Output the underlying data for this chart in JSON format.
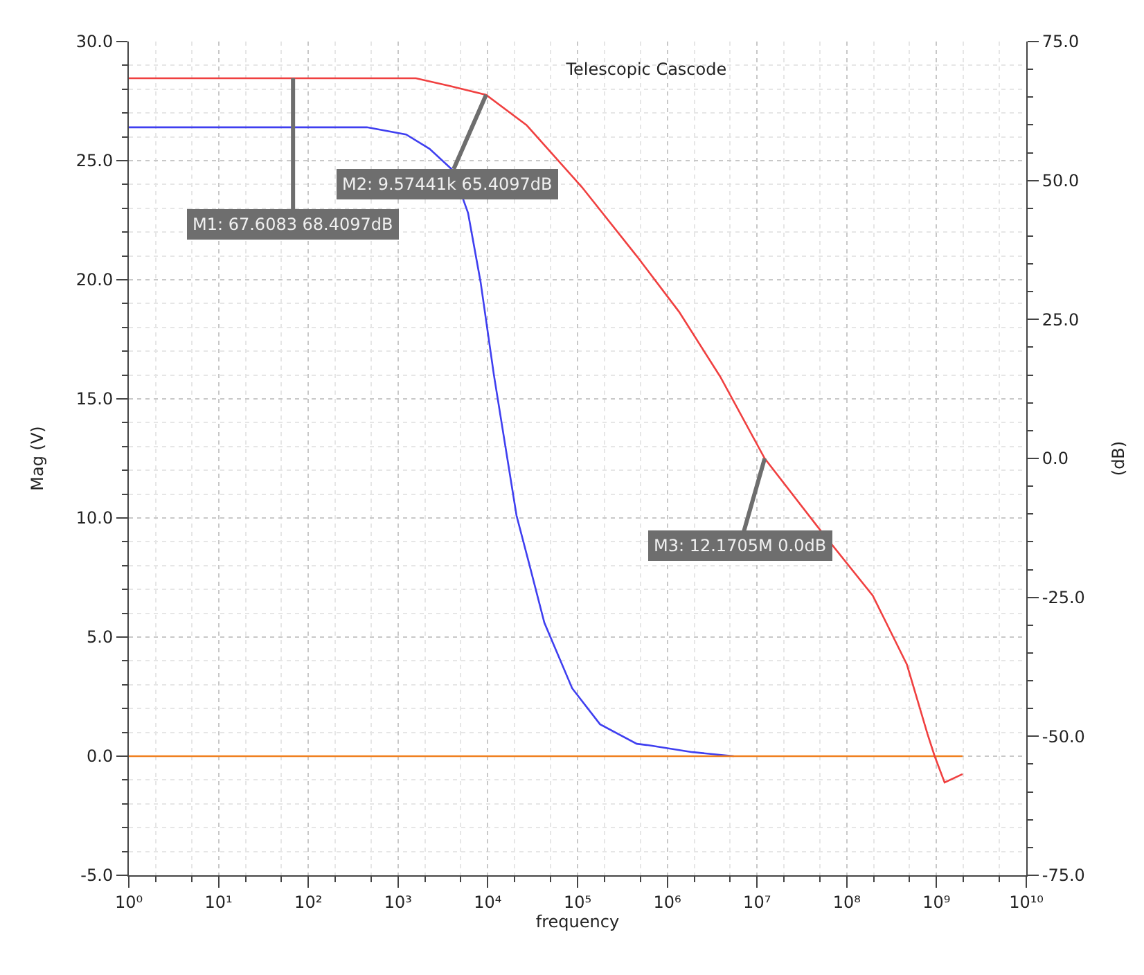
{
  "chart_data": {
    "type": "line",
    "title": "Telescopic Cascode",
    "xlabel": "frequency",
    "ylabel": "Mag (V)",
    "y2label": "(dB)",
    "log": "x",
    "grid": true,
    "marker": "none",
    "line_style": "solid",
    "xlim": [
      1,
      10000000000
    ],
    "xticks": [
      {
        "value": 1,
        "label": "10⁰"
      },
      {
        "value": 10,
        "label": "10¹"
      },
      {
        "value": 100,
        "label": "10²"
      },
      {
        "value": 1000,
        "label": "10³"
      },
      {
        "value": 10000,
        "label": "10⁴"
      },
      {
        "value": 100000,
        "label": "10⁵"
      },
      {
        "value": 1000000,
        "label": "10⁶"
      },
      {
        "value": 10000000,
        "label": "10⁷"
      },
      {
        "value": 100000000,
        "label": "10⁸"
      },
      {
        "value": 1000000000,
        "label": "10⁹"
      },
      {
        "value": 10000000000,
        "label": "10¹⁰"
      }
    ],
    "ylim": [
      -5,
      30
    ],
    "yticks": [
      {
        "value": -5,
        "label": "-5.0"
      },
      {
        "value": 0,
        "label": "0.0"
      },
      {
        "value": 5,
        "label": "5.0"
      },
      {
        "value": 10,
        "label": "10.0"
      },
      {
        "value": 15,
        "label": "15.0"
      },
      {
        "value": 20,
        "label": "20.0"
      },
      {
        "value": 25,
        "label": "25.0"
      },
      {
        "value": 30,
        "label": "30.0"
      }
    ],
    "y2lim": [
      -75,
      75
    ],
    "y2ticks": [
      {
        "value": -75,
        "label": "-75.0"
      },
      {
        "value": -50,
        "label": "-50.0"
      },
      {
        "value": -25,
        "label": "-25.0"
      },
      {
        "value": 0,
        "label": "0.0"
      },
      {
        "value": 25,
        "label": "25.0"
      },
      {
        "value": 50,
        "label": "50.0"
      },
      {
        "value": 75,
        "label": "75.0"
      }
    ],
    "series": [
      {
        "color": "#3f3ff0",
        "x": [
          1,
          450,
          1230,
          2240,
          4070,
          6030,
          8320,
          11700,
          17000,
          20900,
          28800,
          42700,
          87100,
          178000,
          457000,
          589000,
          1910000,
          5500000
        ],
        "values": [
          26.4,
          26.4,
          26.1,
          25.5,
          24.6,
          22.8,
          19.9,
          16.0,
          12.2,
          10.1,
          8.1,
          5.6,
          2.85,
          1.34,
          0.52,
          0.47,
          0.17,
          0.0
        ]
      },
      {
        "color": "#f08020",
        "x": [
          1,
          1950000000
        ],
        "values": [
          0,
          0
        ]
      },
      {
        "color": "#f04040",
        "axis": "y2",
        "x": [
          1,
          67.6,
          1580,
          3800,
          9574,
          26900,
          112000,
          457000,
          1350000,
          3890000,
          12170000,
          46800000,
          195000000,
          468000000,
          794000000,
          955000000,
          1230000000,
          1950000000
        ],
        "values": [
          68.4,
          68.4,
          68.4,
          67.0,
          65.4,
          60.0,
          48.8,
          36.4,
          26.4,
          14.7,
          0.0,
          -12.2,
          -24.7,
          -37.1,
          -49.6,
          -53.6,
          -58.3,
          -56.8
        ]
      }
    ],
    "annotations": [
      {
        "text": "M1: 67.6083 68.4097dB",
        "x": 67.6083,
        "y": 28.46
      },
      {
        "text": "M2: 9.57441k 65.4097dB",
        "x": 9574.41,
        "y": 27.76
      },
      {
        "text": "M3: 12.1705M 0.0dB",
        "x": 12170500,
        "y": 12.5
      }
    ]
  }
}
